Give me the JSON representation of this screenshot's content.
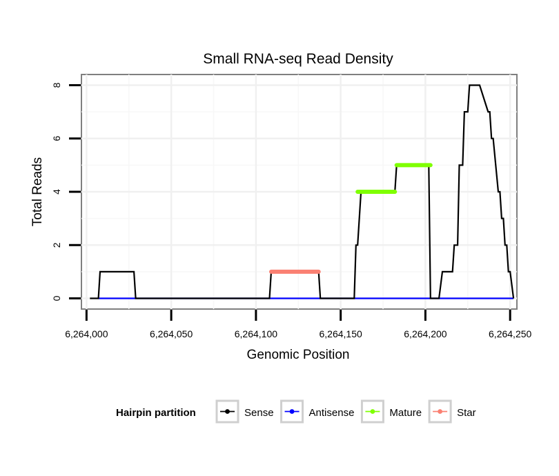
{
  "chart_data": {
    "type": "line",
    "title": "Small RNA-seq Read Density",
    "xlabel": "Genomic Position",
    "ylabel": "Total Reads",
    "xlim": [
      6263997,
      6264254
    ],
    "ylim": [
      -0.4,
      8.4
    ],
    "x_ticks": [
      6264000,
      6264050,
      6264100,
      6264150,
      6264200,
      6264250
    ],
    "x_tick_labels": [
      "6,264,000",
      "6,264,050",
      "6,264,100",
      "6,264,150",
      "6,264,200",
      "6,264,250"
    ],
    "y_ticks": [
      0,
      2,
      4,
      6,
      8
    ],
    "y_tick_labels": [
      "0",
      "2",
      "4",
      "6",
      "8"
    ],
    "grid": true,
    "legend": {
      "title": "Hairpin partition",
      "position": "bottom",
      "entries": [
        {
          "name": "Sense",
          "color": "#000000"
        },
        {
          "name": "Antisense",
          "color": "#0000ff"
        },
        {
          "name": "Mature",
          "color": "#7fff00"
        },
        {
          "name": "Star",
          "color": "#fa8072"
        }
      ]
    },
    "series": [
      {
        "name": "Sense",
        "color": "#000000",
        "x": [
          6264002,
          6264007,
          6264008,
          6264028,
          6264029,
          6264108,
          6264109,
          6264137,
          6264138,
          6264158,
          6264159,
          6264160,
          6264162,
          6264182,
          6264183,
          6264202,
          6264203,
          6264208,
          6264210,
          6264216,
          6264217,
          6264219,
          6264220,
          6264222,
          6264223,
          6264225,
          6264226,
          6264227,
          6264228,
          6264232,
          6264237,
          6264238,
          6264239,
          6264240,
          6264243,
          6264244,
          6264245,
          6264246,
          6264247,
          6264248,
          6264249,
          6264250,
          6264252
        ],
        "y": [
          0,
          0,
          1,
          1,
          0,
          0,
          1,
          1,
          0,
          0,
          2,
          2,
          4,
          4,
          5,
          5,
          0,
          0,
          1,
          1,
          2,
          2,
          5,
          5,
          7,
          7,
          8,
          8,
          8,
          8,
          7,
          7,
          6,
          6,
          4,
          4,
          3,
          3,
          2,
          2,
          1,
          1,
          0
        ]
      },
      {
        "name": "Antisense",
        "color": "#0000ff",
        "x": [
          6264007,
          6264252
        ],
        "y": [
          0,
          0
        ]
      },
      {
        "name": "Mature",
        "color": "#7fff00",
        "segments": [
          {
            "x": [
              6264160,
              6264182
            ],
            "y": 4
          },
          {
            "x": [
              6264183,
              6264203
            ],
            "y": 5
          }
        ]
      },
      {
        "name": "Star",
        "color": "#fa8072",
        "segments": [
          {
            "x": [
              6264109,
              6264137
            ],
            "y": 1
          }
        ]
      }
    ]
  }
}
